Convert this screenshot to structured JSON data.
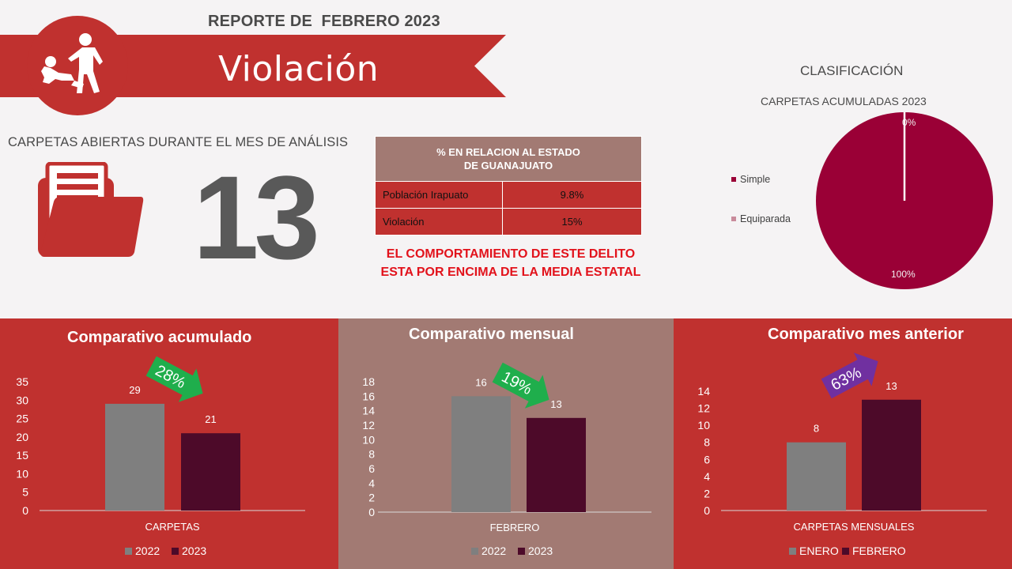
{
  "header": {
    "report_title": "REPORTE DE  FEBRERO 2023",
    "crime_title": "Violación",
    "icon": "assault-icon"
  },
  "cases": {
    "label": "CARPETAS ABIERTAS DURANTE EL MES DE ANÁLISIS",
    "count": "13",
    "icon": "folder-icon"
  },
  "state_table": {
    "header_line1": "% EN RELACION AL ESTADO",
    "header_line2": "DE GUANAJUATO",
    "rows": [
      {
        "label": "Población Irapuato",
        "value": "9.8%"
      },
      {
        "label": "Violación",
        "value": "15%"
      }
    ]
  },
  "warning": {
    "line1": "EL COMPORTAMIENTO DE ESTE DELITO",
    "line2": "ESTA POR ENCIMA DE LA MEDIA ESTATAL"
  },
  "classification": {
    "title": "CLASIFICACIÓN"
  },
  "colors": {
    "red": "#c0312f",
    "taupe": "#a27a73",
    "gray_bar": "#7f7f7f",
    "wine_bar": "#4d0a29",
    "pie": "#9a0036",
    "green_arrow": "#1fae4c",
    "purple_arrow": "#7030a0"
  },
  "chart_data": [
    {
      "type": "pie",
      "title": "CARPETAS ACUMULADAS 2023",
      "categories": [
        "Simple",
        "Equiparada"
      ],
      "values": [
        100,
        0
      ],
      "data_labels": [
        "100%",
        "0%"
      ],
      "colors": [
        "#9a0036",
        "#c98b9b"
      ],
      "legend": "left"
    },
    {
      "type": "bar",
      "title": "Comparativo acumulado",
      "categories": [
        "CARPETAS"
      ],
      "series": [
        {
          "name": "2022",
          "values": [
            29
          ]
        },
        {
          "name": "2023",
          "values": [
            21
          ]
        }
      ],
      "ylim": [
        0,
        35
      ],
      "yticks": [
        0,
        5,
        10,
        15,
        20,
        25,
        30,
        35
      ],
      "change_label": "28%",
      "change_direction": "down",
      "legend": "bottom"
    },
    {
      "type": "bar",
      "title": "Comparativo mensual",
      "categories": [
        "FEBRERO"
      ],
      "series": [
        {
          "name": "2022",
          "values": [
            16
          ]
        },
        {
          "name": "2023",
          "values": [
            13
          ]
        }
      ],
      "ylim": [
        0,
        18
      ],
      "yticks": [
        0,
        2,
        4,
        6,
        8,
        10,
        12,
        14,
        16,
        18
      ],
      "change_label": "19%",
      "change_direction": "down",
      "legend": "bottom"
    },
    {
      "type": "bar",
      "title": "Comparativo mes anterior",
      "categories": [
        "CARPETAS MENSUALES"
      ],
      "series": [
        {
          "name": "ENERO",
          "values": [
            8
          ]
        },
        {
          "name": "FEBRERO",
          "values": [
            13
          ]
        }
      ],
      "ylim": [
        0,
        14
      ],
      "yticks": [
        0,
        2,
        4,
        6,
        8,
        10,
        12,
        14
      ],
      "change_label": "63%",
      "change_direction": "up",
      "legend": "bottom"
    }
  ]
}
